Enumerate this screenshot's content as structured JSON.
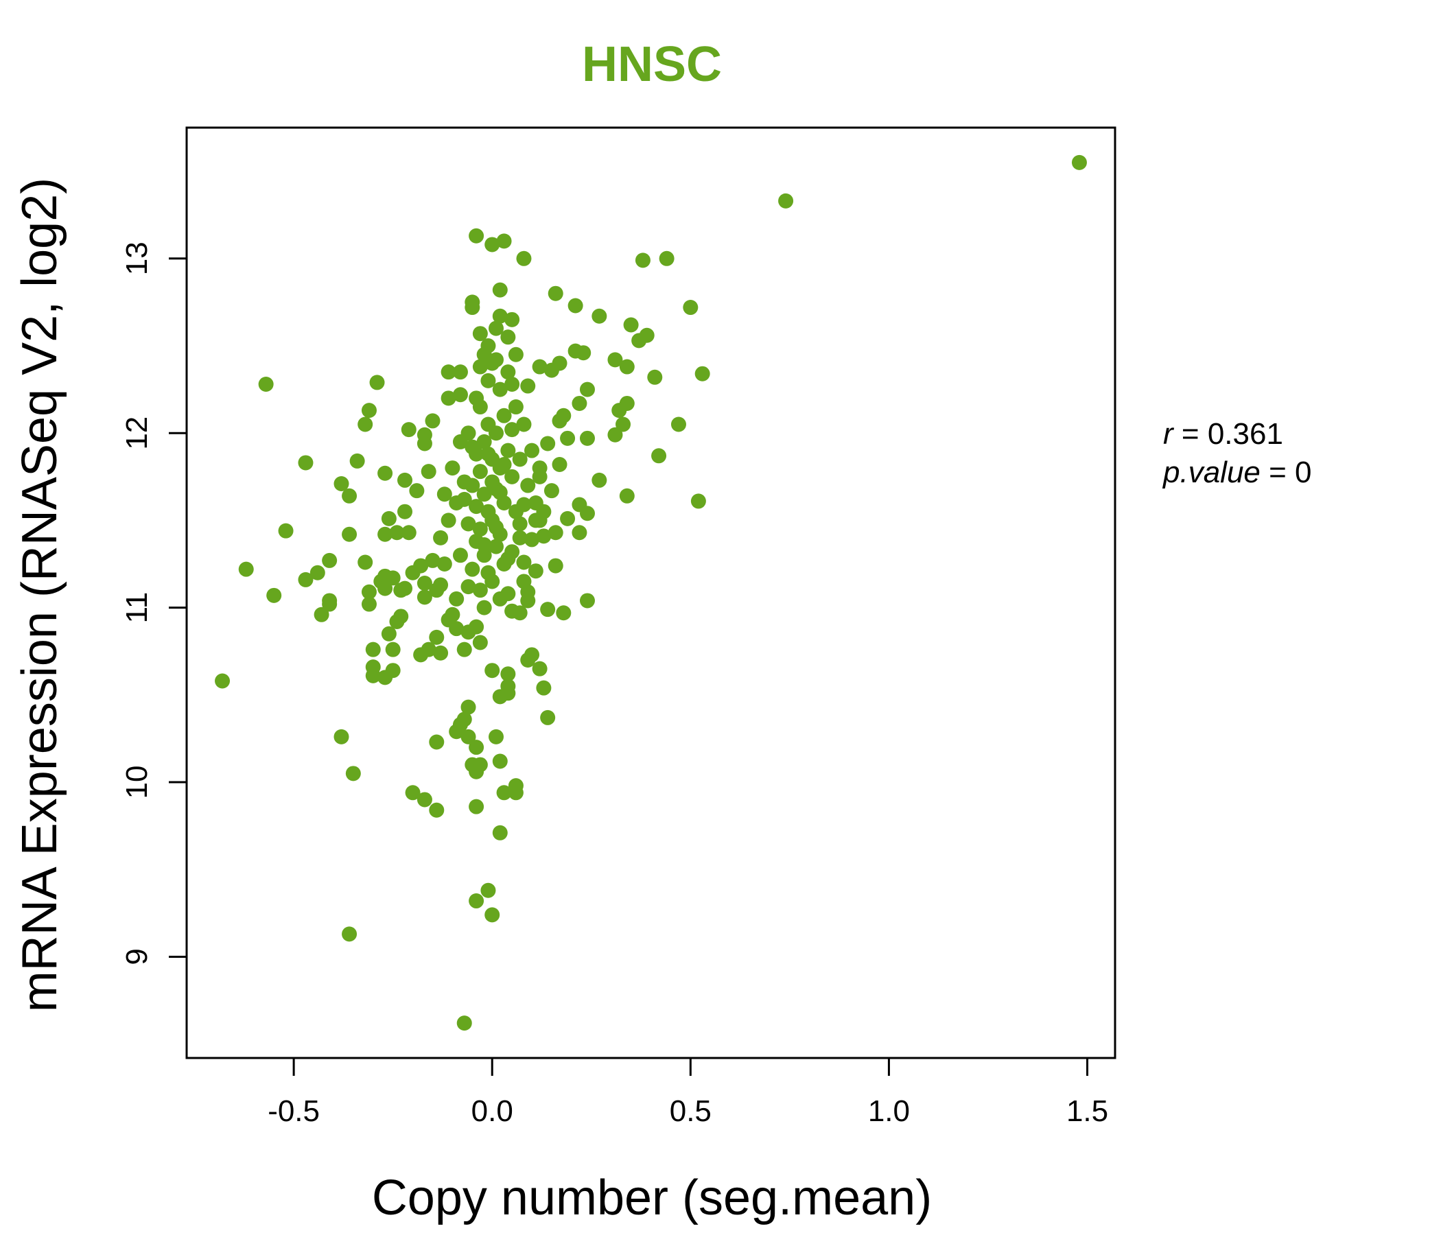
{
  "chart_data": {
    "type": "scatter",
    "title": "HNSC",
    "xlabel": "Copy number (seg.mean)",
    "ylabel": "mRNA Expression (RNASeq V2, log2)",
    "xlim": [
      -0.77,
      1.57
    ],
    "ylim": [
      8.42,
      13.75
    ],
    "x_ticks": [
      -0.5,
      0.0,
      0.5,
      1.0,
      1.5
    ],
    "x_tick_labels": [
      "-0.5",
      "0.0",
      "0.5",
      "1.0",
      "1.5"
    ],
    "y_ticks": [
      9,
      10,
      11,
      12,
      13
    ],
    "y_tick_labels": [
      "9",
      "10",
      "11",
      "12",
      "13"
    ],
    "grid": false,
    "legend": "none",
    "point_color": "#66A61E",
    "annotation": {
      "r_label": "r",
      "r_value": "0.361",
      "p_label": "p.value",
      "p_value": "0"
    },
    "points": [
      {
        "x": 1.48,
        "y": 13.55
      },
      {
        "x": 0.74,
        "y": 13.33
      },
      {
        "x": -0.04,
        "y": 13.13
      },
      {
        "x": 0.03,
        "y": 13.1
      },
      {
        "x": 0.0,
        "y": 13.08
      },
      {
        "x": 0.08,
        "y": 13.0
      },
      {
        "x": 0.38,
        "y": 12.99
      },
      {
        "x": 0.44,
        "y": 13.0
      },
      {
        "x": 0.02,
        "y": 12.82
      },
      {
        "x": 0.16,
        "y": 12.8
      },
      {
        "x": 0.21,
        "y": 12.73
      },
      {
        "x": 0.5,
        "y": 12.72
      },
      {
        "x": -0.05,
        "y": 12.75
      },
      {
        "x": -0.05,
        "y": 12.72
      },
      {
        "x": 0.02,
        "y": 12.67
      },
      {
        "x": 0.27,
        "y": 12.67
      },
      {
        "x": 0.05,
        "y": 12.65
      },
      {
        "x": 0.35,
        "y": 12.62
      },
      {
        "x": 0.39,
        "y": 12.56
      },
      {
        "x": 0.37,
        "y": 12.53
      },
      {
        "x": -0.03,
        "y": 12.57
      },
      {
        "x": 0.01,
        "y": 12.6
      },
      {
        "x": 0.04,
        "y": 12.55
      },
      {
        "x": 0.21,
        "y": 12.47
      },
      {
        "x": 0.23,
        "y": 12.46
      },
      {
        "x": 0.17,
        "y": 12.4
      },
      {
        "x": 0.31,
        "y": 12.42
      },
      {
        "x": 0.34,
        "y": 12.38
      },
      {
        "x": 0.53,
        "y": 12.34
      },
      {
        "x": 0.41,
        "y": 12.32
      },
      {
        "x": 0.12,
        "y": 12.38
      },
      {
        "x": 0.15,
        "y": 12.36
      },
      {
        "x": -0.57,
        "y": 12.28
      },
      {
        "x": -0.29,
        "y": 12.29
      },
      {
        "x": -0.11,
        "y": 12.35
      },
      {
        "x": -0.08,
        "y": 12.35
      },
      {
        "x": 0.24,
        "y": 12.25
      },
      {
        "x": 0.09,
        "y": 12.27
      },
      {
        "x": 0.22,
        "y": 12.17
      },
      {
        "x": 0.34,
        "y": 12.17
      },
      {
        "x": 0.32,
        "y": 12.13
      },
      {
        "x": -0.31,
        "y": 12.13
      },
      {
        "x": -0.11,
        "y": 12.2
      },
      {
        "x": -0.08,
        "y": 12.22
      },
      {
        "x": 0.18,
        "y": 12.1
      },
      {
        "x": 0.17,
        "y": 12.07
      },
      {
        "x": 0.33,
        "y": 12.05
      },
      {
        "x": 0.47,
        "y": 12.05
      },
      {
        "x": -0.32,
        "y": 12.05
      },
      {
        "x": -0.15,
        "y": 12.07
      },
      {
        "x": -0.21,
        "y": 12.02
      },
      {
        "x": -0.17,
        "y": 11.99
      },
      {
        "x": 0.24,
        "y": 11.97
      },
      {
        "x": 0.31,
        "y": 11.99
      },
      {
        "x": 0.19,
        "y": 11.97
      },
      {
        "x": 0.42,
        "y": 11.87
      },
      {
        "x": -0.47,
        "y": 11.83
      },
      {
        "x": -0.34,
        "y": 11.84
      },
      {
        "x": -0.27,
        "y": 11.77
      },
      {
        "x": -0.16,
        "y": 11.78
      },
      {
        "x": -0.17,
        "y": 11.94
      },
      {
        "x": 0.14,
        "y": 11.94
      },
      {
        "x": 0.17,
        "y": 11.82
      },
      {
        "x": 0.12,
        "y": 11.8
      },
      {
        "x": 0.27,
        "y": 11.73
      },
      {
        "x": -0.38,
        "y": 11.71
      },
      {
        "x": -0.36,
        "y": 11.64
      },
      {
        "x": -0.19,
        "y": 11.67
      },
      {
        "x": -0.22,
        "y": 11.73
      },
      {
        "x": 0.15,
        "y": 11.67
      },
      {
        "x": 0.34,
        "y": 11.64
      },
      {
        "x": 0.52,
        "y": 11.61
      },
      {
        "x": 0.22,
        "y": 11.59
      },
      {
        "x": 0.24,
        "y": 11.54
      },
      {
        "x": 0.19,
        "y": 11.51
      },
      {
        "x": -0.52,
        "y": 11.44
      },
      {
        "x": -0.36,
        "y": 11.42
      },
      {
        "x": -0.26,
        "y": 11.51
      },
      {
        "x": -0.22,
        "y": 11.55
      },
      {
        "x": -0.27,
        "y": 11.42
      },
      {
        "x": -0.24,
        "y": 11.43
      },
      {
        "x": -0.21,
        "y": 11.43
      },
      {
        "x": 0.22,
        "y": 11.43
      },
      {
        "x": 0.16,
        "y": 11.43
      },
      {
        "x": 0.13,
        "y": 11.41
      },
      {
        "x": 0.1,
        "y": 11.39
      },
      {
        "x": 0.12,
        "y": 11.5
      },
      {
        "x": 0.11,
        "y": 11.5
      },
      {
        "x": 0.08,
        "y": 11.59
      },
      {
        "x": -0.62,
        "y": 11.22
      },
      {
        "x": -0.41,
        "y": 11.27
      },
      {
        "x": -0.32,
        "y": 11.26
      },
      {
        "x": -0.44,
        "y": 11.2
      },
      {
        "x": -0.47,
        "y": 11.16
      },
      {
        "x": -0.28,
        "y": 11.15
      },
      {
        "x": -0.27,
        "y": 11.18
      },
      {
        "x": -0.25,
        "y": 11.17
      },
      {
        "x": -0.2,
        "y": 11.2
      },
      {
        "x": -0.18,
        "y": 11.24
      },
      {
        "x": -0.15,
        "y": 11.27
      },
      {
        "x": -0.17,
        "y": 11.14
      },
      {
        "x": -0.13,
        "y": 11.13
      },
      {
        "x": -0.14,
        "y": 11.1
      },
      {
        "x": -0.31,
        "y": 11.09
      },
      {
        "x": -0.27,
        "y": 11.11
      },
      {
        "x": -0.23,
        "y": 11.1
      },
      {
        "x": -0.22,
        "y": 11.11
      },
      {
        "x": -0.55,
        "y": 11.07
      },
      {
        "x": -0.41,
        "y": 11.04
      },
      {
        "x": -0.41,
        "y": 11.02
      },
      {
        "x": -0.31,
        "y": 11.02
      },
      {
        "x": -0.17,
        "y": 11.06
      },
      {
        "x": 0.16,
        "y": 11.24
      },
      {
        "x": 0.11,
        "y": 11.21
      },
      {
        "x": 0.08,
        "y": 11.26
      },
      {
        "x": 0.09,
        "y": 11.09
      },
      {
        "x": 0.09,
        "y": 11.04
      },
      {
        "x": 0.24,
        "y": 11.04
      },
      {
        "x": 0.14,
        "y": 10.99
      },
      {
        "x": 0.18,
        "y": 10.97
      },
      {
        "x": 0.05,
        "y": 10.98
      },
      {
        "x": 0.07,
        "y": 10.97
      },
      {
        "x": -0.43,
        "y": 10.96
      },
      {
        "x": -0.23,
        "y": 10.95
      },
      {
        "x": -0.24,
        "y": 10.92
      },
      {
        "x": -0.1,
        "y": 10.96
      },
      {
        "x": -0.11,
        "y": 10.93
      },
      {
        "x": -0.09,
        "y": 10.88
      },
      {
        "x": -0.06,
        "y": 10.86
      },
      {
        "x": -0.04,
        "y": 10.89
      },
      {
        "x": -0.26,
        "y": 10.85
      },
      {
        "x": -0.14,
        "y": 10.83
      },
      {
        "x": -0.3,
        "y": 10.76
      },
      {
        "x": -0.25,
        "y": 10.76
      },
      {
        "x": -0.16,
        "y": 10.76
      },
      {
        "x": -0.13,
        "y": 10.74
      },
      {
        "x": -0.18,
        "y": 10.73
      },
      {
        "x": -0.07,
        "y": 10.76
      },
      {
        "x": -0.03,
        "y": 10.8
      },
      {
        "x": 0.1,
        "y": 10.73
      },
      {
        "x": 0.09,
        "y": 10.7
      },
      {
        "x": -0.68,
        "y": 10.58
      },
      {
        "x": -0.3,
        "y": 10.66
      },
      {
        "x": -0.3,
        "y": 10.61
      },
      {
        "x": -0.25,
        "y": 10.64
      },
      {
        "x": -0.27,
        "y": 10.6
      },
      {
        "x": 0.0,
        "y": 10.64
      },
      {
        "x": 0.04,
        "y": 10.62
      },
      {
        "x": 0.12,
        "y": 10.65
      },
      {
        "x": 0.13,
        "y": 10.54
      },
      {
        "x": 0.04,
        "y": 10.55
      },
      {
        "x": 0.02,
        "y": 10.49
      },
      {
        "x": 0.04,
        "y": 10.51
      },
      {
        "x": 0.14,
        "y": 10.37
      },
      {
        "x": -0.06,
        "y": 10.43
      },
      {
        "x": -0.07,
        "y": 10.36
      },
      {
        "x": -0.08,
        "y": 10.33
      },
      {
        "x": -0.09,
        "y": 10.29
      },
      {
        "x": -0.06,
        "y": 10.26
      },
      {
        "x": -0.38,
        "y": 10.26
      },
      {
        "x": -0.14,
        "y": 10.23
      },
      {
        "x": -0.04,
        "y": 10.2
      },
      {
        "x": 0.01,
        "y": 10.26
      },
      {
        "x": -0.05,
        "y": 10.1
      },
      {
        "x": -0.03,
        "y": 10.1
      },
      {
        "x": 0.02,
        "y": 10.12
      },
      {
        "x": -0.04,
        "y": 10.06
      },
      {
        "x": -0.35,
        "y": 10.05
      },
      {
        "x": -0.2,
        "y": 9.94
      },
      {
        "x": -0.17,
        "y": 9.9
      },
      {
        "x": -0.14,
        "y": 9.84
      },
      {
        "x": 0.03,
        "y": 9.94
      },
      {
        "x": 0.06,
        "y": 9.98
      },
      {
        "x": 0.06,
        "y": 9.94
      },
      {
        "x": -0.04,
        "y": 9.86
      },
      {
        "x": 0.02,
        "y": 9.71
      },
      {
        "x": -0.01,
        "y": 9.38
      },
      {
        "x": -0.04,
        "y": 9.32
      },
      {
        "x": 0.0,
        "y": 9.24
      },
      {
        "x": -0.36,
        "y": 9.13
      },
      {
        "x": -0.07,
        "y": 8.62
      },
      {
        "x": -0.02,
        "y": 12.45
      },
      {
        "x": 0.0,
        "y": 12.4
      },
      {
        "x": -0.01,
        "y": 12.3
      },
      {
        "x": 0.02,
        "y": 12.25
      },
      {
        "x": -0.03,
        "y": 12.15
      },
      {
        "x": 0.03,
        "y": 12.1
      },
      {
        "x": -0.01,
        "y": 12.05
      },
      {
        "x": 0.01,
        "y": 12.0
      },
      {
        "x": -0.02,
        "y": 11.95
      },
      {
        "x": 0.04,
        "y": 11.9
      },
      {
        "x": -0.04,
        "y": 11.88
      },
      {
        "x": 0.0,
        "y": 11.85
      },
      {
        "x": 0.02,
        "y": 11.8
      },
      {
        "x": -0.03,
        "y": 11.78
      },
      {
        "x": 0.05,
        "y": 11.75
      },
      {
        "x": -0.05,
        "y": 11.7
      },
      {
        "x": 0.01,
        "y": 11.68
      },
      {
        "x": -0.02,
        "y": 11.65
      },
      {
        "x": 0.03,
        "y": 11.6
      },
      {
        "x": -0.01,
        "y": 11.55
      },
      {
        "x": 0.0,
        "y": 11.5
      },
      {
        "x": -0.03,
        "y": 11.45
      },
      {
        "x": 0.02,
        "y": 11.42
      },
      {
        "x": -0.04,
        "y": 11.38
      },
      {
        "x": 0.01,
        "y": 11.35
      },
      {
        "x": -0.02,
        "y": 11.3
      },
      {
        "x": 0.03,
        "y": 11.25
      },
      {
        "x": -0.01,
        "y": 11.2
      },
      {
        "x": 0.0,
        "y": 11.15
      },
      {
        "x": -0.03,
        "y": 11.1
      },
      {
        "x": 0.02,
        "y": 11.05
      },
      {
        "x": -0.02,
        "y": 11.0
      },
      {
        "x": 0.04,
        "y": 12.35
      },
      {
        "x": -0.04,
        "y": 12.2
      },
      {
        "x": 0.06,
        "y": 12.15
      },
      {
        "x": -0.06,
        "y": 12.0
      },
      {
        "x": 0.07,
        "y": 11.85
      },
      {
        "x": -0.07,
        "y": 11.72
      },
      {
        "x": 0.06,
        "y": 11.55
      },
      {
        "x": -0.06,
        "y": 11.48
      },
      {
        "x": 0.05,
        "y": 11.32
      },
      {
        "x": -0.05,
        "y": 11.22
      },
      {
        "x": 0.08,
        "y": 12.05
      },
      {
        "x": -0.08,
        "y": 11.95
      },
      {
        "x": 0.09,
        "y": 11.7
      },
      {
        "x": -0.09,
        "y": 11.6
      },
      {
        "x": 0.07,
        "y": 11.4
      },
      {
        "x": -0.08,
        "y": 11.3
      },
      {
        "x": 0.1,
        "y": 11.9
      },
      {
        "x": -0.1,
        "y": 11.8
      },
      {
        "x": 0.11,
        "y": 11.6
      },
      {
        "x": -0.11,
        "y": 11.5
      },
      {
        "x": 0.06,
        "y": 12.45
      },
      {
        "x": -0.01,
        "y": 12.5
      },
      {
        "x": 0.01,
        "y": 12.42
      },
      {
        "x": -0.03,
        "y": 12.38
      },
      {
        "x": 0.05,
        "y": 12.28
      },
      {
        "x": -0.12,
        "y": 11.65
      },
      {
        "x": 0.12,
        "y": 11.75
      },
      {
        "x": -0.13,
        "y": 11.4
      },
      {
        "x": 0.13,
        "y": 11.55
      },
      {
        "x": -0.12,
        "y": 11.25
      },
      {
        "x": 0.08,
        "y": 11.15
      },
      {
        "x": -0.06,
        "y": 11.12
      },
      {
        "x": 0.04,
        "y": 11.08
      },
      {
        "x": -0.09,
        "y": 11.05
      },
      {
        "x": 0.05,
        "y": 12.02
      },
      {
        "x": -0.05,
        "y": 11.92
      },
      {
        "x": 0.03,
        "y": 11.82
      },
      {
        "x": -0.07,
        "y": 11.62
      },
      {
        "x": 0.07,
        "y": 11.48
      },
      {
        "x": -0.04,
        "y": 11.58
      },
      {
        "x": 0.0,
        "y": 11.72
      },
      {
        "x": -0.01,
        "y": 11.88
      },
      {
        "x": 0.02,
        "y": 11.66
      },
      {
        "x": 0.01,
        "y": 11.46
      },
      {
        "x": -0.02,
        "y": 11.36
      },
      {
        "x": 0.04,
        "y": 11.28
      }
    ]
  }
}
